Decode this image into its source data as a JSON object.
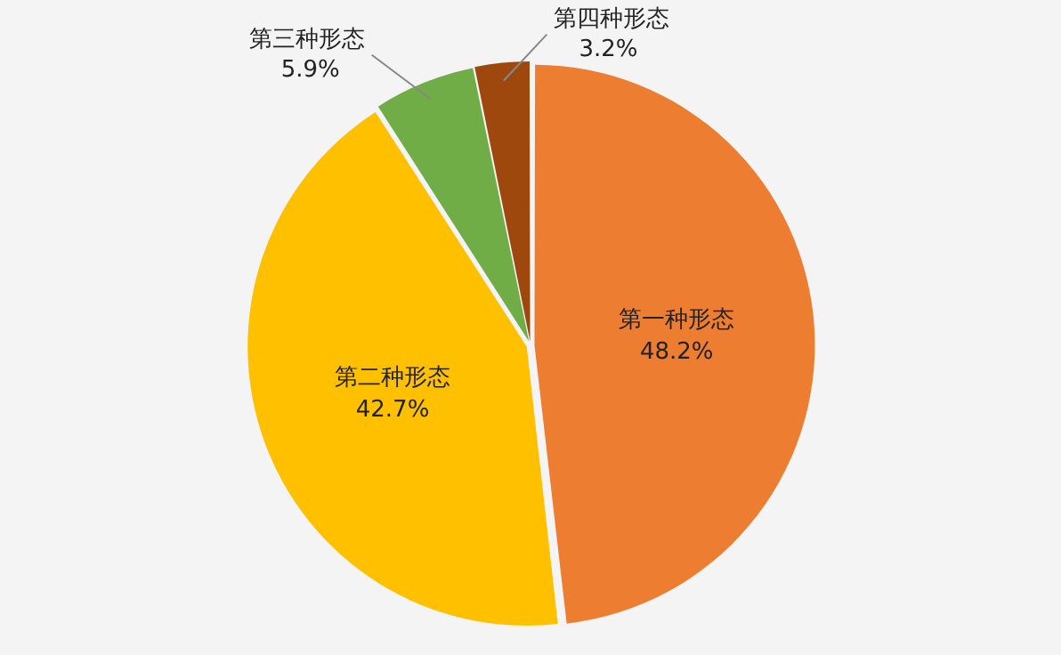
{
  "chart_data": {
    "type": "pie",
    "categories": [
      "第一种形态",
      "第二种形态",
      "第三种形态",
      "第四种形态"
    ],
    "values": [
      48.2,
      42.7,
      5.9,
      3.2
    ],
    "colors": [
      "#ed7d31",
      "#ffc000",
      "#70ad47",
      "#9e480e"
    ],
    "value_labels": [
      "48.2%",
      "42.7%",
      "5.9%",
      "3.2%"
    ],
    "legend": false
  }
}
